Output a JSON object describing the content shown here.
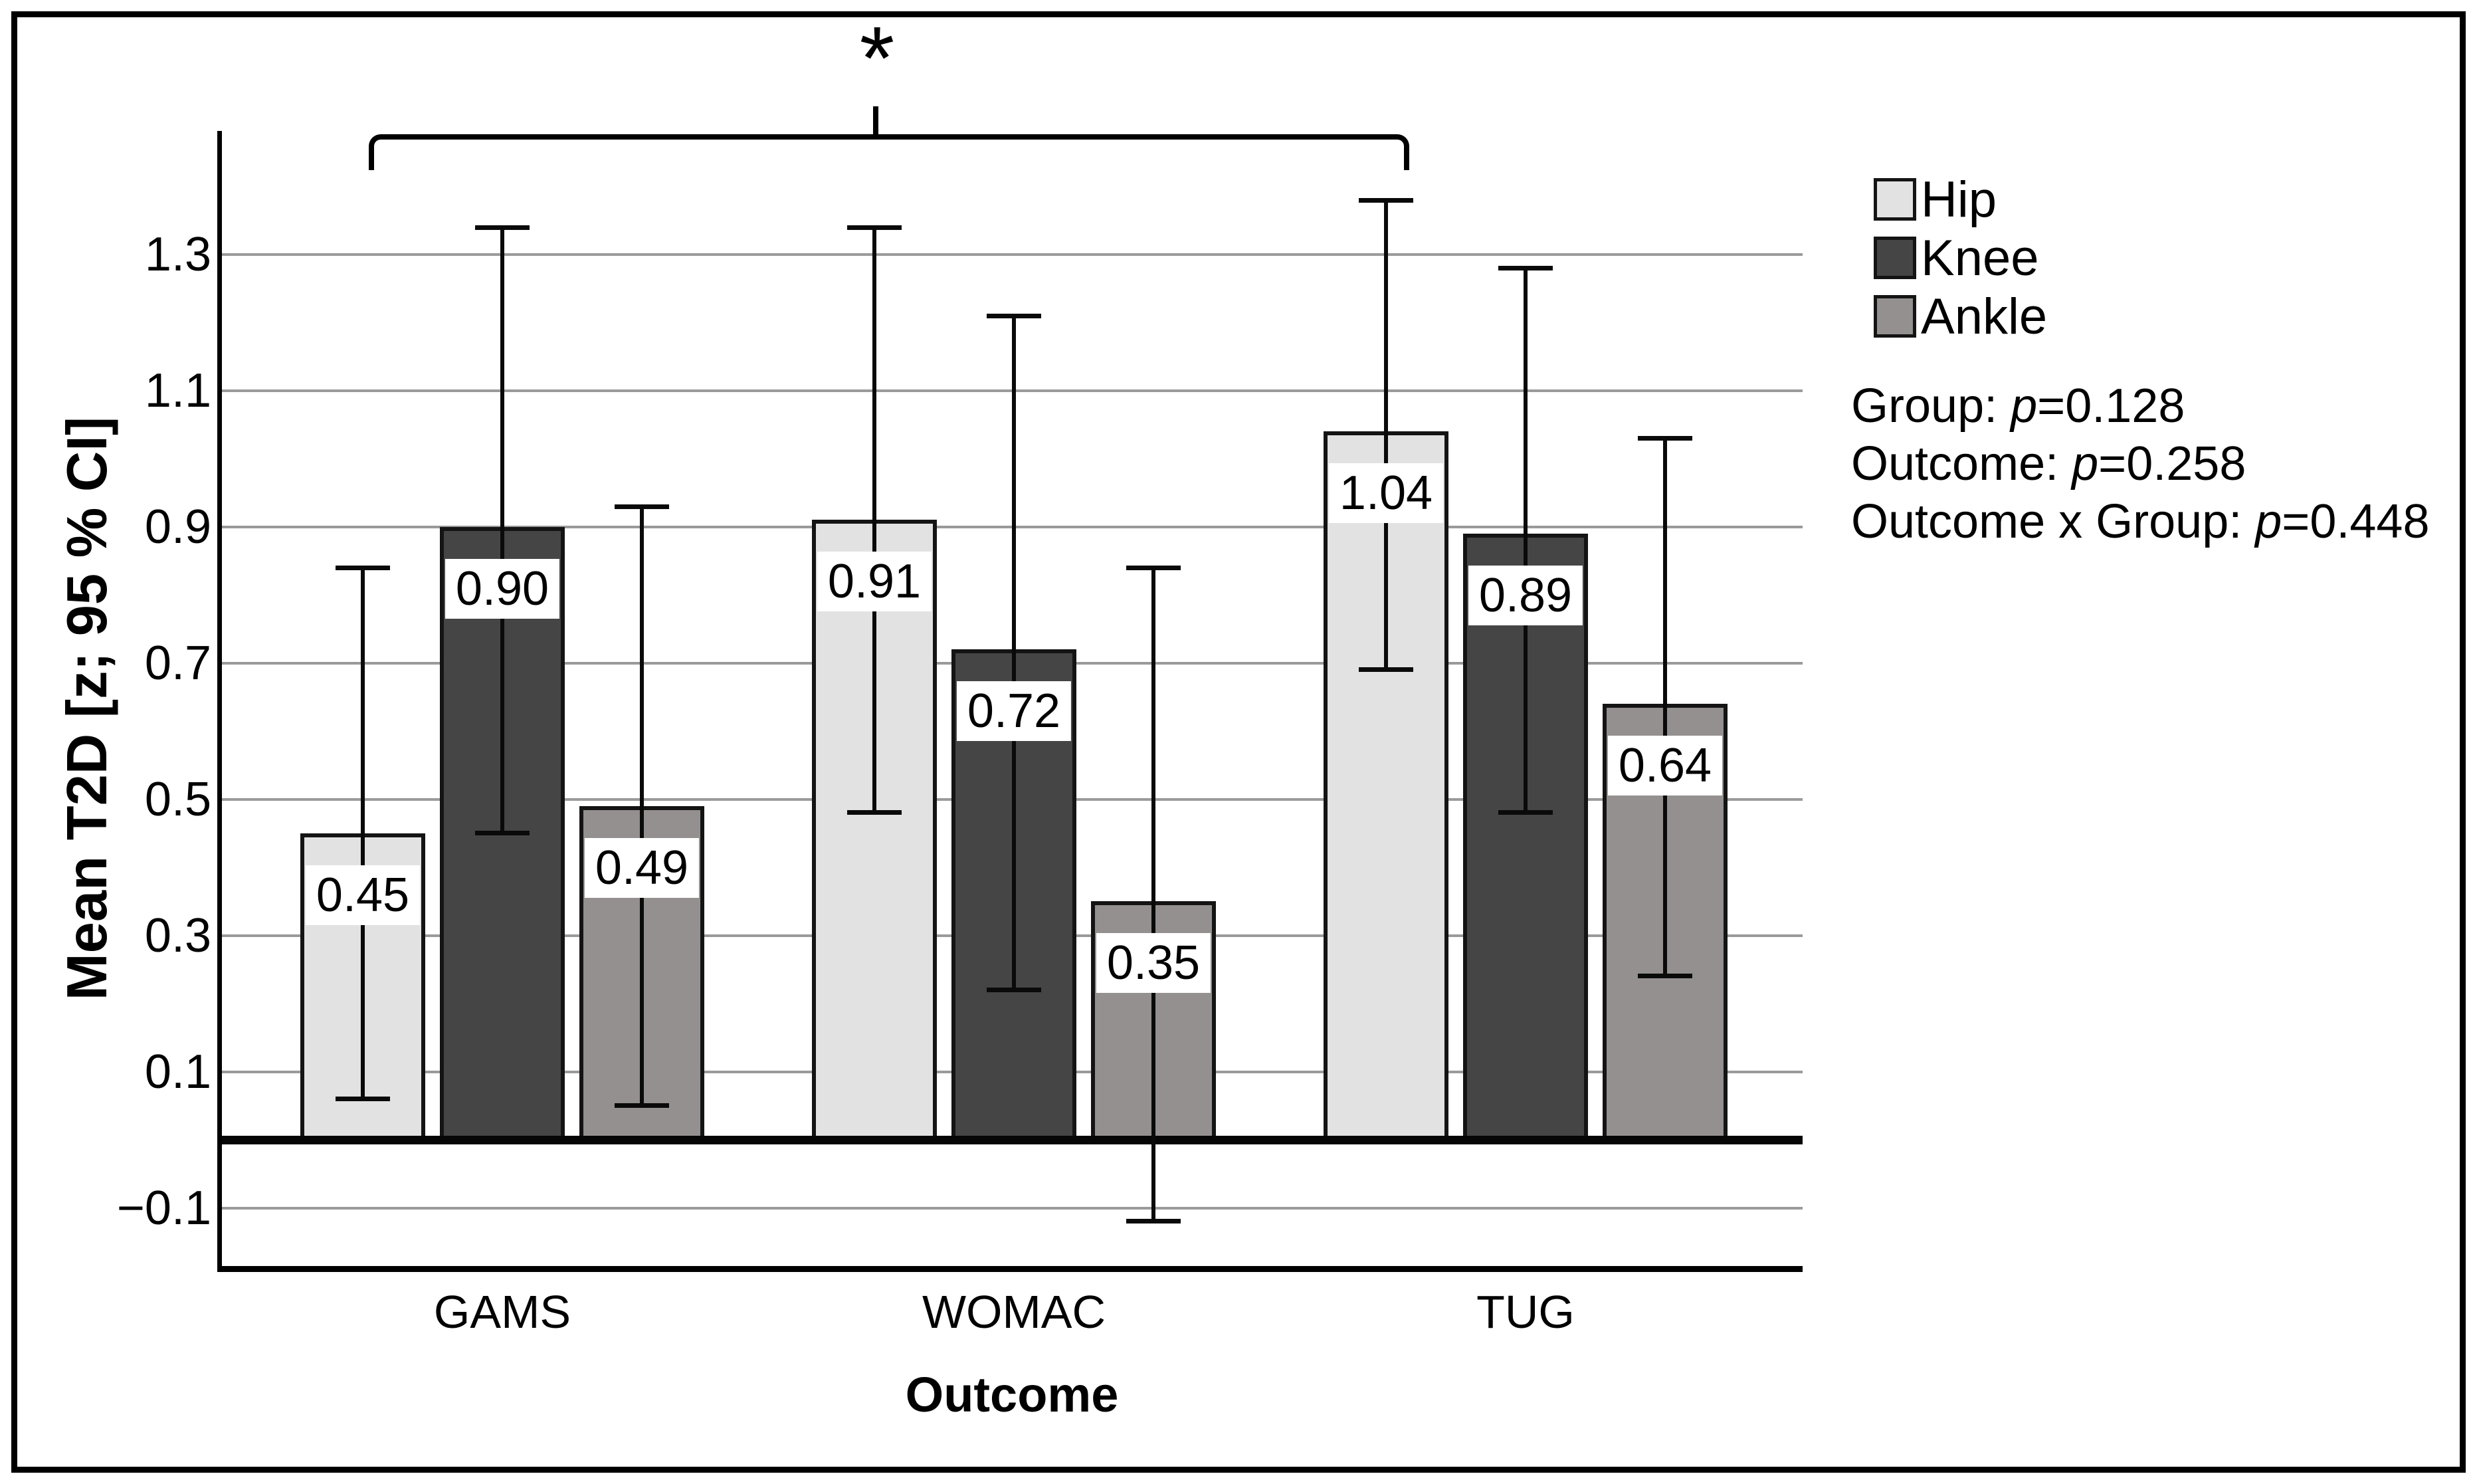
{
  "figure": {
    "significance": {
      "symbol": "*"
    },
    "stats": {
      "symbol": "p",
      "lines": [
        {
          "prefix": "Group: ",
          "rest": "=0.128"
        },
        {
          "prefix": "Outcome: ",
          "rest": "=0.258"
        },
        {
          "prefix": "Outcome x Group: ",
          "rest": "=0.448"
        }
      ]
    }
  },
  "chart_data": {
    "type": "bar",
    "title": "",
    "xlabel": "Outcome",
    "ylabel": "Mean T2D [z; 95 % CI]",
    "categories": [
      "GAMS",
      "WOMAC",
      "TUG"
    ],
    "series": [
      {
        "name": "Hip",
        "color": "#e2e2e2",
        "values": [
          0.45,
          0.91,
          1.04
        ],
        "ci_low": [
          0.06,
          0.48,
          0.69
        ],
        "ci_high": [
          0.84,
          1.34,
          1.38
        ]
      },
      {
        "name": "Knee",
        "color": "#454545",
        "values": [
          0.9,
          0.72,
          0.89
        ],
        "ci_low": [
          0.45,
          0.22,
          0.48
        ],
        "ci_high": [
          1.34,
          1.21,
          1.28
        ]
      },
      {
        "name": "Ankle",
        "color": "#94908f",
        "values": [
          0.49,
          0.35,
          0.64
        ],
        "ci_low": [
          0.05,
          -0.12,
          0.24
        ],
        "ci_high": [
          0.93,
          0.84,
          1.03
        ]
      }
    ],
    "yticks": [
      1.3,
      1.1,
      0.9,
      0.7,
      0.5,
      0.3,
      0.1,
      -0.1
    ],
    "ylim": [
      -0.19,
      1.48
    ],
    "grid": true,
    "legend_position": "right",
    "bar_value_labels": "2-decimal labels in white boxes inside bars",
    "error_bars": "95% CI",
    "significance_bracket": {
      "symbol": "*",
      "spans_from": "GAMS Hip bar",
      "spans_to": "TUG Hip bar"
    }
  }
}
